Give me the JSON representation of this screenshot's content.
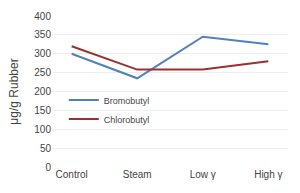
{
  "chart_data": {
    "type": "line",
    "categories": [
      "Control",
      "Steam",
      "Low γ",
      "High γ"
    ],
    "series": [
      {
        "name": "Bromobutyl",
        "color": "#4f81bd",
        "values": [
          300,
          235,
          345,
          325
        ]
      },
      {
        "name": "Chlorobutyl",
        "color": "#9b3030",
        "values": [
          320,
          258,
          258,
          280
        ]
      }
    ],
    "ylabel": "μg/g Rubber",
    "ylim": [
      0,
      400
    ],
    "yticks": [
      0,
      50,
      100,
      150,
      200,
      250,
      300,
      350,
      400
    ],
    "grid": true,
    "legend": "left"
  }
}
